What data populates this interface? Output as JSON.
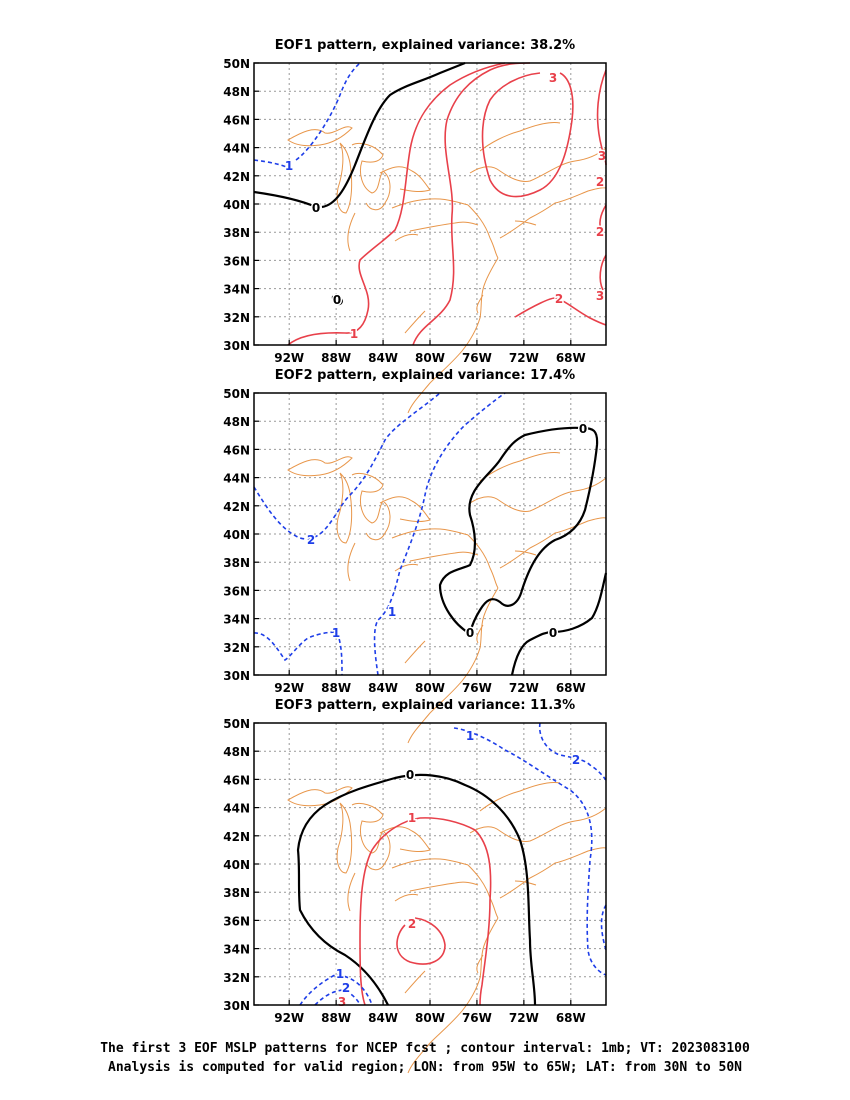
{
  "panels": [
    {
      "title": "EOF1 pattern, explained variance: 38.2%",
      "labels": [
        "0",
        "0",
        "1",
        "1",
        "2",
        "2",
        "2",
        "3",
        "3",
        "3"
      ]
    },
    {
      "title": "EOF2 pattern, explained variance: 17.4%",
      "labels": [
        "0",
        "0",
        "0",
        "1",
        "1",
        "2"
      ]
    },
    {
      "title": "EOF3 pattern, explained variance: 11.3%",
      "labels": [
        "0",
        "1",
        "2",
        "1",
        "2",
        "3",
        "1",
        "2"
      ]
    }
  ],
  "axis": {
    "lat_ticks": [
      "50N",
      "48N",
      "46N",
      "44N",
      "42N",
      "40N",
      "38N",
      "36N",
      "34N",
      "32N",
      "30N"
    ],
    "lon_ticks": [
      "92W",
      "88W",
      "84W",
      "80W",
      "76W",
      "72W",
      "68W"
    ]
  },
  "colors": {
    "positive": "#e8404a",
    "negative": "#1e3ee8",
    "zero": "#000000",
    "coast": "#e8964a",
    "grid": "#999999"
  },
  "caption": {
    "line1": "The first 3 EOF MSLP patterns for NCEP fcst ; contour interval: 1mb; VT: 2023083100",
    "line2": "Analysis is computed for valid region; LON: from 95W to 65W; LAT: from 30N to 50N"
  }
}
